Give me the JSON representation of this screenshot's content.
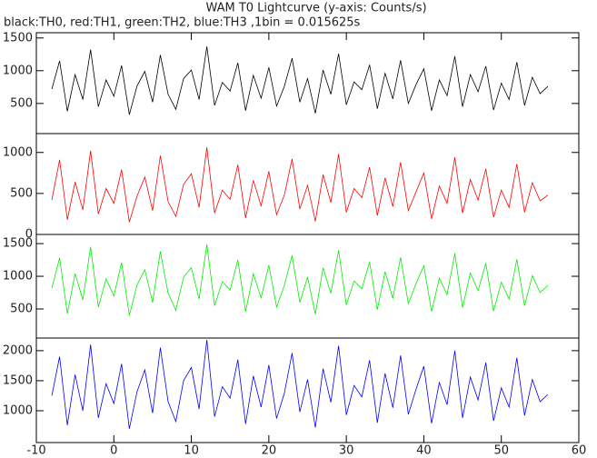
{
  "chart_data": {
    "type": "line",
    "title": "WAM T0 Lightcurve (y-axis: Counts/s)",
    "subtitle": "black:TH0, red:TH1, green:TH2, blue:TH3 ,1bin = 0.015625s",
    "x": [
      -8,
      -7,
      -6,
      -5,
      -4,
      -3,
      -2,
      -1,
      0,
      1,
      2,
      3,
      4,
      5,
      6,
      7,
      8,
      9,
      10,
      11,
      12,
      13,
      14,
      15,
      16,
      17,
      18,
      19,
      20,
      21,
      22,
      23,
      24,
      25,
      26,
      27,
      28,
      29,
      30,
      31,
      32,
      33,
      34,
      35,
      36,
      37,
      38,
      39,
      40,
      41,
      42,
      43,
      44,
      45,
      46,
      47,
      48,
      49,
      50,
      51,
      52,
      53,
      54,
      55,
      56
    ],
    "xlim": [
      -10,
      60
    ],
    "xticks": [
      -10,
      0,
      10,
      20,
      30,
      40,
      50,
      60
    ],
    "panels": [
      {
        "color": "#000000",
        "ylim": [
          40,
          1580
        ],
        "yticks": [
          500,
          1000,
          1500
        ],
        "values": [
          720,
          1150,
          380,
          940,
          560,
          1320,
          450,
          860,
          610,
          1080,
          330,
          770,
          990,
          520,
          1240,
          640,
          410,
          880,
          1010,
          560,
          1370,
          470,
          820,
          690,
          1120,
          390,
          930,
          580,
          1050,
          460,
          760,
          1190,
          520,
          880,
          350,
          1010,
          640,
          1260,
          480,
          830,
          710,
          1090,
          420,
          960,
          570,
          1160,
          500,
          790,
          1030,
          390,
          860,
          620,
          1220,
          450,
          940,
          680,
          1070,
          400,
          810,
          560,
          1130,
          470,
          900,
          650,
          760
        ]
      },
      {
        "color": "#ff0000",
        "ylim": [
          0,
          1230
        ],
        "yticks": [
          0,
          500,
          1000
        ],
        "values": [
          420,
          910,
          180,
          640,
          300,
          1020,
          250,
          560,
          380,
          790,
          150,
          470,
          700,
          290,
          960,
          400,
          220,
          610,
          740,
          330,
          1060,
          260,
          540,
          430,
          850,
          200,
          660,
          350,
          770,
          240,
          480,
          920,
          310,
          600,
          160,
          730,
          390,
          980,
          270,
          560,
          450,
          820,
          230,
          690,
          340,
          880,
          290,
          520,
          750,
          190,
          590,
          380,
          940,
          260,
          670,
          420,
          800,
          210,
          540,
          330,
          860,
          270,
          630,
          410,
          480
        ]
      },
      {
        "color": "#00ee00",
        "ylim": [
          55,
          1640
        ],
        "yticks": [
          500,
          1000,
          1500
        ],
        "values": [
          820,
          1280,
          430,
          1040,
          640,
          1450,
          530,
          960,
          700,
          1210,
          400,
          870,
          1100,
          600,
          1380,
          740,
          480,
          990,
          1130,
          650,
          1490,
          550,
          920,
          790,
          1250,
          460,
          1040,
          670,
          1170,
          530,
          860,
          1320,
          600,
          990,
          420,
          1130,
          740,
          1400,
          560,
          930,
          810,
          1220,
          490,
          1070,
          660,
          1290,
          580,
          890,
          1160,
          460,
          970,
          720,
          1350,
          520,
          1050,
          780,
          1200,
          470,
          910,
          650,
          1260,
          550,
          1010,
          750,
          860
        ]
      },
      {
        "color": "#0000ff",
        "ylim": [
          470,
          2210
        ],
        "yticks": [
          1000,
          1500,
          2000
        ],
        "values": [
          1250,
          1900,
          760,
          1600,
          1000,
          2100,
          880,
          1450,
          1120,
          1780,
          700,
          1320,
          1680,
          960,
          2050,
          1150,
          820,
          1500,
          1720,
          1030,
          2180,
          900,
          1400,
          1210,
          1850,
          780,
          1580,
          1060,
          1760,
          870,
          1290,
          1960,
          980,
          1520,
          720,
          1700,
          1140,
          2080,
          930,
          1420,
          1230,
          1840,
          800,
          1620,
          1050,
          1920,
          940,
          1360,
          1740,
          790,
          1470,
          1100,
          2000,
          880,
          1560,
          1180,
          1800,
          830,
          1380,
          1060,
          1880,
          920,
          1520,
          1150,
          1270
        ]
      }
    ]
  }
}
